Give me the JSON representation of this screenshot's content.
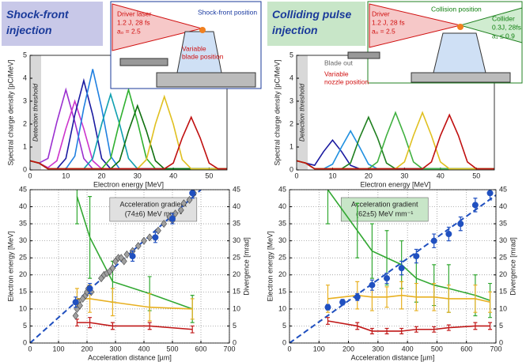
{
  "chart_data": [
    {
      "type": "line",
      "title": "Shock-front injection",
      "xlabel": "Electron energy [MeV]",
      "ylabel": "Spectral charge density [pC/MeV]",
      "threshold_label": "Detection threshold",
      "xlim": [
        0,
        55
      ],
      "xticks": [
        0,
        10,
        20,
        30,
        40,
        50
      ],
      "ylim": [
        0,
        5
      ],
      "yticks": [
        0,
        1,
        2,
        3,
        4,
        5
      ],
      "grid": false,
      "inset": [
        "Driver laser",
        "1.2 J, 28 fs",
        "a₀ = 2.5",
        "Shock-front position",
        "Variable",
        "blade position"
      ],
      "x": [
        0,
        2.5,
        5,
        7.5,
        10,
        12.5,
        15,
        17.5,
        20,
        22.5,
        25,
        27.5,
        30,
        32.5,
        35,
        37.5,
        40,
        42.5,
        45,
        47.5,
        50,
        52.5,
        55
      ],
      "series": [
        {
          "color": "#9b30d0",
          "values": [
            0.4,
            0.3,
            0.5,
            2.1,
            3.5,
            2.1,
            0.5,
            0.05,
            0.05,
            0.05,
            0.05,
            0.05,
            0.05,
            0.05,
            0.05,
            0.05,
            0.05,
            0.05,
            0.05,
            0.05,
            0.05,
            0.05,
            0.05
          ]
        },
        {
          "color": "#cc33cc",
          "values": [
            0.4,
            0.3,
            0.1,
            0.4,
            1.8,
            3.0,
            1.8,
            0.4,
            0.05,
            0.05,
            0.05,
            0.05,
            0.05,
            0.05,
            0.05,
            0.05,
            0.05,
            0.05,
            0.05,
            0.05,
            0.05,
            0.05,
            0.05
          ]
        },
        {
          "color": "#1a1aa0",
          "values": [
            0.4,
            0.3,
            0.05,
            0.05,
            0.5,
            2.4,
            3.9,
            2.4,
            0.5,
            0.05,
            0.05,
            0.05,
            0.05,
            0.05,
            0.05,
            0.05,
            0.05,
            0.05,
            0.05,
            0.05,
            0.05,
            0.05,
            0.05
          ]
        },
        {
          "color": "#2080e0",
          "values": [
            0.4,
            0.3,
            0.05,
            0.05,
            0.05,
            0.6,
            2.7,
            4.4,
            2.7,
            0.6,
            0.05,
            0.05,
            0.05,
            0.05,
            0.05,
            0.05,
            0.05,
            0.05,
            0.05,
            0.05,
            0.05,
            0.05,
            0.05
          ]
        },
        {
          "color": "#10a0b0",
          "values": [
            0.4,
            0.3,
            0.05,
            0.05,
            0.05,
            0.05,
            0.05,
            0.5,
            2.0,
            3.3,
            2.0,
            0.5,
            0.05,
            0.05,
            0.05,
            0.05,
            0.05,
            0.05,
            0.05,
            0.05,
            0.05,
            0.05,
            0.05
          ]
        },
        {
          "color": "#30b030",
          "values": [
            0.4,
            0.3,
            0.05,
            0.05,
            0.05,
            0.05,
            0.05,
            0.05,
            0.05,
            0.5,
            2.1,
            3.5,
            2.1,
            0.5,
            0.05,
            0.05,
            0.05,
            0.05,
            0.05,
            0.05,
            0.05,
            0.05,
            0.05
          ]
        },
        {
          "color": "#107010",
          "values": [
            0.4,
            0.3,
            0.05,
            0.05,
            0.05,
            0.05,
            0.05,
            0.05,
            0.05,
            0.05,
            0.4,
            1.7,
            2.8,
            1.7,
            0.4,
            0.05,
            0.05,
            0.05,
            0.05,
            0.05,
            0.05,
            0.05,
            0.05
          ]
        },
        {
          "color": "#e0c020",
          "values": [
            0.4,
            0.3,
            0.05,
            0.05,
            0.05,
            0.05,
            0.05,
            0.05,
            0.05,
            0.05,
            0.05,
            0.05,
            0.05,
            0.45,
            2.0,
            3.2,
            2.0,
            0.45,
            0.05,
            0.05,
            0.05,
            0.05,
            0.05
          ]
        },
        {
          "color": "#c01010",
          "values": [
            0.4,
            0.3,
            0.05,
            0.05,
            0.05,
            0.05,
            0.05,
            0.05,
            0.05,
            0.05,
            0.05,
            0.05,
            0.05,
            0.05,
            0.05,
            0.05,
            0.3,
            1.4,
            2.3,
            1.4,
            0.3,
            0.05,
            0.05
          ]
        }
      ]
    },
    {
      "type": "line",
      "title": "Colliding pulse injection",
      "xlabel": "Electron energy [MeV]",
      "ylabel": "Spectral charge density [pC/MeV]",
      "threshold_label": "Detection threshold",
      "xlim": [
        0,
        55
      ],
      "xticks": [
        0,
        10,
        20,
        30,
        40,
        50
      ],
      "ylim": [
        0,
        5
      ],
      "yticks": [
        0,
        1,
        2,
        3,
        4,
        5
      ],
      "grid": false,
      "inset": [
        "Driver",
        "1.2 J, 28 fs",
        "a₀ = 2.5",
        "Collision position",
        "Collider",
        "0.3J, 28fs",
        "a₁ ≤ 0.9",
        "Blade out",
        "Variable",
        "nozzle position"
      ],
      "x": [
        0,
        2.5,
        5,
        7.5,
        10,
        12.5,
        15,
        17.5,
        20,
        22.5,
        25,
        27.5,
        30,
        32.5,
        35,
        37.5,
        40,
        42.5,
        45,
        47.5,
        50,
        52.5,
        55
      ],
      "series": [
        {
          "color": "#1a1aa0",
          "values": [
            0.4,
            0.3,
            0.2,
            0.8,
            1.3,
            0.8,
            0.2,
            0.05,
            0.05,
            0.05,
            0.05,
            0.05,
            0.05,
            0.05,
            0.05,
            0.05,
            0.05,
            0.05,
            0.05,
            0.05,
            0.05,
            0.05,
            0.05
          ]
        },
        {
          "color": "#2090e0",
          "values": [
            0.4,
            0.3,
            0.05,
            0.05,
            0.25,
            1.0,
            1.7,
            1.0,
            0.25,
            0.05,
            0.05,
            0.05,
            0.05,
            0.05,
            0.05,
            0.05,
            0.05,
            0.05,
            0.05,
            0.05,
            0.05,
            0.05,
            0.05
          ]
        },
        {
          "color": "#208020",
          "values": [
            0.4,
            0.3,
            0.05,
            0.05,
            0.05,
            0.05,
            0.3,
            1.4,
            2.3,
            1.4,
            0.3,
            0.05,
            0.05,
            0.05,
            0.05,
            0.05,
            0.05,
            0.05,
            0.05,
            0.05,
            0.05,
            0.05,
            0.05
          ]
        },
        {
          "color": "#40b040",
          "values": [
            0.4,
            0.3,
            0.05,
            0.05,
            0.05,
            0.05,
            0.05,
            0.05,
            0.05,
            0.35,
            1.5,
            2.5,
            1.5,
            0.35,
            0.05,
            0.05,
            0.05,
            0.05,
            0.05,
            0.05,
            0.05,
            0.05,
            0.05
          ]
        },
        {
          "color": "#e0c020",
          "values": [
            0.4,
            0.3,
            0.05,
            0.05,
            0.05,
            0.05,
            0.05,
            0.05,
            0.05,
            0.05,
            0.05,
            0.05,
            0.35,
            1.5,
            2.5,
            1.5,
            0.35,
            0.05,
            0.05,
            0.05,
            0.05,
            0.05,
            0.05
          ]
        },
        {
          "color": "#c01010",
          "values": [
            0.4,
            0.3,
            0.05,
            0.05,
            0.05,
            0.05,
            0.05,
            0.05,
            0.05,
            0.05,
            0.05,
            0.05,
            0.05,
            0.05,
            0.05,
            0.35,
            1.5,
            2.4,
            1.5,
            0.35,
            0.05,
            0.05,
            0.05
          ]
        }
      ]
    },
    {
      "type": "line",
      "xlabel": "Acceleration distance [µm]",
      "ylabel": "Electron energy [MeV]",
      "y2label": "Divergence [mrad]",
      "ycolor": "#2050c0",
      "y2color": "#30a030",
      "xlim": [
        0,
        700
      ],
      "xticks": [
        0,
        100,
        200,
        300,
        400,
        500,
        600,
        700
      ],
      "ylim": [
        0,
        45
      ],
      "yticks": [
        0,
        5,
        10,
        15,
        20,
        25,
        30,
        35,
        40,
        45
      ],
      "y2lim": [
        0,
        45
      ],
      "y2ticks": [
        0,
        5,
        10,
        15,
        20,
        25,
        30,
        35,
        40,
        45
      ],
      "grid": true,
      "annotation": [
        "Acceleration gradient",
        "(74±6) MeV mm⁻¹"
      ],
      "annotation_color": "#e0e0e0",
      "series": [
        {
          "color": "#1f4fbf",
          "marker": "none",
          "dash": true,
          "x": [
            0,
            600
          ],
          "values": [
            0,
            45
          ]
        },
        {
          "color": "#32a832",
          "marker": "none",
          "axis": "y2",
          "x": [
            165,
            210,
            290,
            420,
            570
          ],
          "values": [
            43,
            31,
            18,
            14.5,
            10
          ],
          "errors": [
            8,
            12,
            6,
            5,
            4
          ]
        },
        {
          "color": "#e8b020",
          "marker": "none",
          "axis": "y2",
          "x": [
            165,
            210,
            290,
            420,
            570
          ],
          "values": [
            13,
            13,
            12,
            10.5,
            10
          ],
          "errors": [
            3,
            4,
            4,
            4,
            3
          ]
        },
        {
          "color": "#c01818",
          "marker": "none",
          "axis": "y2",
          "x": [
            165,
            210,
            290,
            420,
            570
          ],
          "values": [
            6,
            6,
            5,
            5,
            4
          ],
          "errors": [
            1,
            1.5,
            1,
            1,
            1
          ]
        },
        {
          "color": "#a0a0a0",
          "marker": "diamond",
          "x": [
            160,
            165,
            170,
            175,
            185,
            195,
            200,
            205,
            215,
            250,
            260,
            270,
            280,
            290,
            300,
            310,
            320,
            330,
            340,
            360,
            380,
            400,
            420,
            450,
            470,
            490,
            500,
            510,
            530,
            540,
            560,
            575
          ],
          "values": [
            8,
            10,
            12,
            11,
            13,
            14,
            15,
            16,
            15,
            19,
            20,
            20.5,
            21,
            22,
            24,
            25,
            25,
            24,
            26,
            27,
            28.5,
            30,
            31,
            33,
            35,
            37,
            36,
            38,
            39,
            41,
            42,
            44
          ]
        },
        {
          "color": "#2050c0",
          "marker": "circle",
          "x": [
            160,
            210,
            360,
            440,
            500,
            570
          ],
          "values": [
            12,
            16,
            25.5,
            31,
            36.5,
            44
          ],
          "errors": [
            1.5,
            1.5,
            1.5,
            1.5,
            1.5,
            1.5
          ]
        }
      ]
    },
    {
      "type": "line",
      "xlabel": "Acceleration distance [µm]",
      "ylabel": "Electron energy [MeV]",
      "y2label": "Divergence [mrad]",
      "ycolor": "#2050c0",
      "y2color": "#30a030",
      "xlim": [
        0,
        700
      ],
      "xticks": [
        0,
        100,
        200,
        300,
        400,
        500,
        600,
        700
      ],
      "ylim": [
        0,
        45
      ],
      "yticks": [
        0,
        5,
        10,
        15,
        20,
        25,
        30,
        35,
        40,
        45
      ],
      "y2lim": [
        0,
        45
      ],
      "y2ticks": [
        0,
        5,
        10,
        15,
        20,
        25,
        30,
        35,
        40,
        45
      ],
      "grid": true,
      "annotation": [
        "Acceleration gradient",
        "(62±5) MeV mm⁻¹"
      ],
      "annotation_color": "#c8e6c8",
      "series": [
        {
          "color": "#1f4fbf",
          "marker": "none",
          "dash": true,
          "x": [
            0,
            700
          ],
          "values": [
            0,
            43.4
          ]
        },
        {
          "color": "#32a832",
          "marker": "none",
          "axis": "y2",
          "x": [
            130,
            230,
            280,
            330,
            380,
            430,
            490,
            540,
            630,
            680
          ],
          "values": [
            45,
            33,
            27,
            25,
            23,
            19,
            17,
            16,
            14,
            12.5
          ],
          "errors": [
            10,
            8,
            8,
            8,
            7,
            7,
            6,
            7,
            6,
            5
          ]
        },
        {
          "color": "#e8b020",
          "marker": "none",
          "axis": "y2",
          "x": [
            130,
            230,
            280,
            330,
            380,
            430,
            490,
            540,
            630,
            680
          ],
          "values": [
            13,
            14,
            13.5,
            13.5,
            14,
            13.5,
            13.5,
            13,
            13,
            12
          ],
          "errors": [
            4,
            4,
            4,
            3,
            4,
            4,
            4,
            4,
            4,
            3
          ]
        },
        {
          "color": "#c01818",
          "marker": "none",
          "axis": "y2",
          "x": [
            130,
            230,
            280,
            330,
            380,
            430,
            490,
            540,
            630,
            680
          ],
          "values": [
            6.5,
            5,
            3.5,
            3.5,
            3.5,
            4,
            4,
            4.5,
            5,
            5
          ],
          "errors": [
            1,
            1,
            0.8,
            0.8,
            0.8,
            0.8,
            0.8,
            0.8,
            1,
            1
          ]
        },
        {
          "color": "#2050c0",
          "marker": "circle",
          "x": [
            130,
            180,
            230,
            280,
            330,
            380,
            430,
            490,
            540,
            580,
            630,
            680
          ],
          "values": [
            10.5,
            12,
            13.5,
            17,
            19,
            22,
            25.5,
            30,
            32,
            35,
            40.5,
            44
          ],
          "errors": [
            0.8,
            0.8,
            1,
            1.5,
            1.5,
            2,
            2,
            2,
            2,
            2,
            2,
            2
          ]
        }
      ]
    }
  ]
}
